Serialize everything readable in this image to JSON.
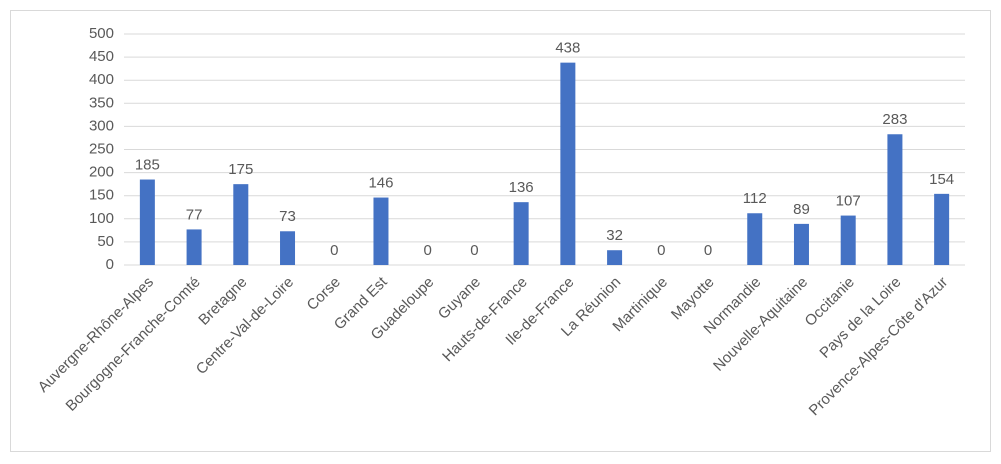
{
  "chart_data": {
    "type": "bar",
    "categories": [
      "Auvergne-Rhône-Alpes",
      "Bourgogne-Franche-Comté",
      "Bretagne",
      "Centre-Val-de-Loire",
      "Corse",
      "Grand Est",
      "Guadeloupe",
      "Guyane",
      "Hauts-de-France",
      "Ile-de-France",
      "La Réunion",
      "Martinique",
      "Mayotte",
      "Normandie",
      "Nouvelle-Aquitaine",
      "Occitanie",
      "Pays de la Loire",
      "Provence-Alpes-Côte d'Azur"
    ],
    "values": [
      185,
      77,
      175,
      73,
      0,
      146,
      0,
      0,
      136,
      438,
      32,
      0,
      0,
      112,
      89,
      107,
      283,
      154
    ],
    "color": "#4472c4",
    "ylim": [
      0,
      500
    ],
    "yticks": [
      0,
      50,
      100,
      150,
      200,
      250,
      300,
      350,
      400,
      450,
      500
    ],
    "grid": true,
    "data_labels": true
  }
}
